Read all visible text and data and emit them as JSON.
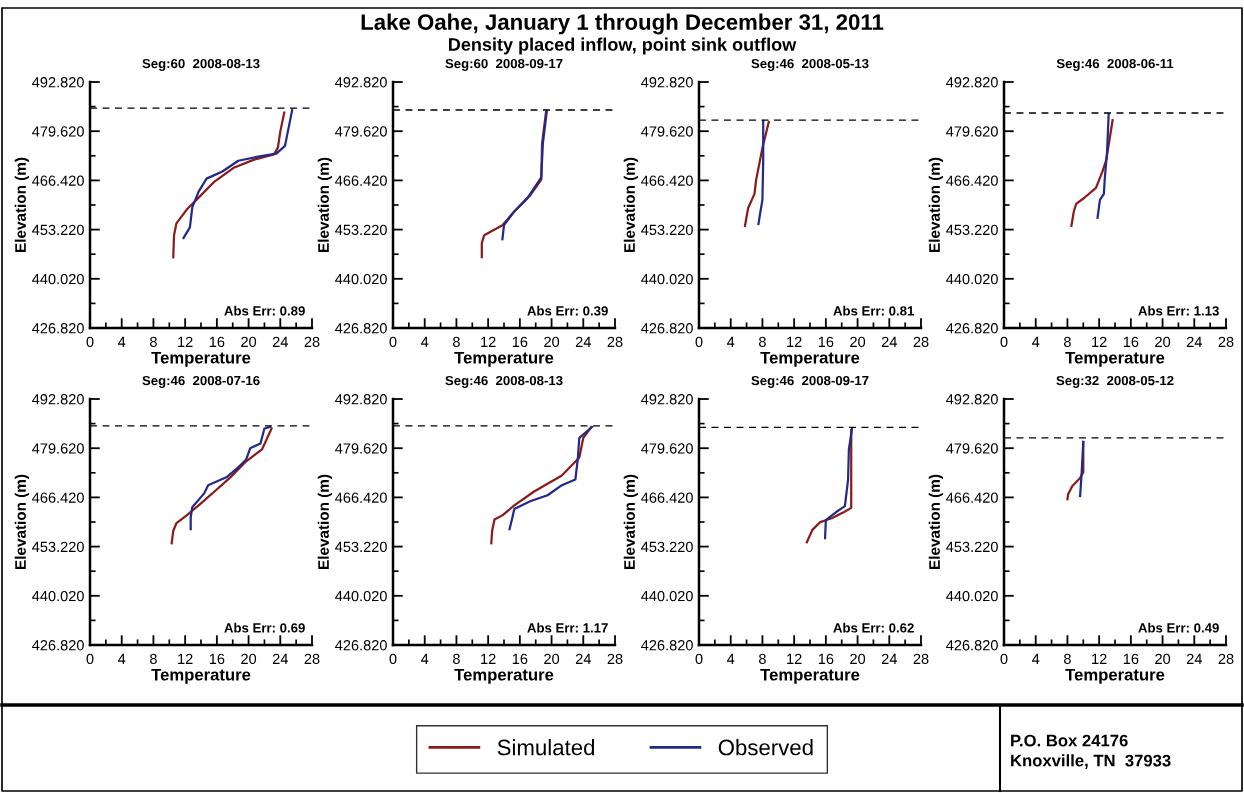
{
  "chart_data": [
    {
      "type": "line",
      "title": "Seg:60  2008-08-13",
      "xlabel": "Temperature",
      "ylabel": "Elevation (m)",
      "xlim": [
        0,
        28
      ],
      "xticks": [
        0,
        4,
        8,
        12,
        16,
        20,
        24,
        28
      ],
      "ylim": [
        426.82,
        492.82
      ],
      "yticks": [
        {
          "value": 426.82,
          "label": "426.820"
        },
        {
          "value": 440.02,
          "label": "440.020"
        },
        {
          "value": 453.22,
          "label": "453.220"
        },
        {
          "value": 466.42,
          "label": "466.420"
        },
        {
          "value": 479.62,
          "label": "479.620"
        },
        {
          "value": 492.82,
          "label": "492.820"
        }
      ],
      "grid": false,
      "legend": "bottom",
      "annotations": [
        "Abs Err: 0.89"
      ],
      "ref_lines": [
        {
          "axis": "y",
          "value": 485.8,
          "color": "#000000",
          "line_style": "dashed"
        }
      ],
      "series": [
        {
          "name": "Simulated",
          "color": "#8b1a1a",
          "x": [
            24.5,
            24.0,
            23.7,
            23.2,
            20.7,
            18.2,
            15.7,
            13.7,
            12.2,
            10.9,
            10.6,
            10.5
          ],
          "values": [
            484.6,
            479.5,
            475.2,
            473.4,
            472.0,
            469.9,
            466.1,
            461.8,
            458.6,
            454.9,
            451.7,
            445.8
          ]
        },
        {
          "name": "Observed",
          "color": "#1f2a8c",
          "x": [
            25.5,
            24.8,
            24.6,
            23.5,
            21.2,
            18.7,
            16.7,
            14.7,
            13.7,
            12.9,
            12.6,
            11.8
          ],
          "values": [
            485.3,
            477.9,
            475.7,
            473.6,
            472.8,
            471.7,
            468.8,
            466.9,
            463.4,
            459.2,
            453.8,
            451.0
          ]
        }
      ]
    },
    {
      "type": "line",
      "title": "Seg:60  2008-09-17",
      "xlabel": "Temperature",
      "ylabel": "Elevation (m)",
      "xlim": [
        0,
        28
      ],
      "xticks": [
        0,
        4,
        8,
        12,
        16,
        20,
        24,
        28
      ],
      "ylim": [
        426.82,
        492.82
      ],
      "yticks": [
        {
          "value": 426.82,
          "label": "426.820"
        },
        {
          "value": 440.02,
          "label": "440.020"
        },
        {
          "value": 453.22,
          "label": "453.220"
        },
        {
          "value": 466.42,
          "label": "466.420"
        },
        {
          "value": 479.62,
          "label": "479.620"
        },
        {
          "value": 492.82,
          "label": "492.820"
        }
      ],
      "grid": false,
      "annotations": [
        "Abs Err: 0.39"
      ],
      "ref_lines": [
        {
          "axis": "y",
          "value": 485.3,
          "color": "#000000",
          "line_style": "dashed"
        }
      ],
      "series": [
        {
          "color": "#8b1a1a",
          "x": [
            19.3,
            18.8,
            18.7,
            17.3,
            15.3,
            13.8,
            11.5,
            11.2,
            11.2
          ],
          "values": [
            484.8,
            476.3,
            466.6,
            462.4,
            458.1,
            454.4,
            451.7,
            449.6,
            445.8
          ]
        },
        {
          "color": "#1f2a8c",
          "x": [
            19.4,
            18.9,
            18.7,
            17.0,
            15.3,
            14.0,
            13.8
          ],
          "values": [
            485.0,
            476.3,
            467.2,
            461.8,
            458.1,
            454.4,
            450.6
          ]
        }
      ]
    },
    {
      "type": "line",
      "title": "Seg:46  2008-05-13",
      "xlabel": "Temperature",
      "ylabel": "Elevation (m)",
      "xlim": [
        0,
        28
      ],
      "xticks": [
        0,
        4,
        8,
        12,
        16,
        20,
        24,
        28
      ],
      "ylim": [
        426.82,
        492.82
      ],
      "yticks": [
        {
          "value": 426.82,
          "label": "426.820"
        },
        {
          "value": 440.02,
          "label": "440.020"
        },
        {
          "value": 453.22,
          "label": "453.220"
        },
        {
          "value": 466.42,
          "label": "466.420"
        },
        {
          "value": 479.62,
          "label": "479.620"
        },
        {
          "value": 492.82,
          "label": "492.820"
        }
      ],
      "grid": false,
      "annotations": [
        "Abs Err: 0.81"
      ],
      "ref_lines": [
        {
          "axis": "y",
          "value": 482.6,
          "color": "#000000",
          "line_style": "dashed"
        }
      ],
      "series": [
        {
          "color": "#8b1a1a",
          "x": [
            8.8,
            8.0,
            7.2,
            7.0,
            6.2,
            5.8
          ],
          "values": [
            482.1,
            475.1,
            466.5,
            462.8,
            459.0,
            454.2
          ]
        },
        {
          "color": "#1f2a8c",
          "x": [
            8.1,
            8.1,
            8.0,
            7.7,
            7.5
          ],
          "values": [
            482.4,
            471.9,
            461.2,
            457.4,
            454.7
          ]
        }
      ]
    },
    {
      "type": "line",
      "title": "Seg:46  2008-06-11",
      "xlabel": "Temperature",
      "ylabel": "Elevation (m)",
      "xlim": [
        0,
        28
      ],
      "xticks": [
        0,
        4,
        8,
        12,
        16,
        20,
        24,
        28
      ],
      "ylim": [
        426.82,
        492.82
      ],
      "yticks": [
        {
          "value": 426.82,
          "label": "426.820"
        },
        {
          "value": 440.02,
          "label": "440.020"
        },
        {
          "value": 453.22,
          "label": "453.220"
        },
        {
          "value": 466.42,
          "label": "466.420"
        },
        {
          "value": 479.62,
          "label": "479.620"
        },
        {
          "value": 492.82,
          "label": "492.820"
        }
      ],
      "grid": false,
      "annotations": [
        "Abs Err: 1.13"
      ],
      "ref_lines": [
        {
          "axis": "y",
          "value": 484.5,
          "color": "#000000",
          "line_style": "dashed"
        }
      ],
      "series": [
        {
          "color": "#8b1a1a",
          "x": [
            13.7,
            12.9,
            12.4,
            11.6,
            10.1,
            9.1,
            8.8,
            8.5
          ],
          "values": [
            482.6,
            471.9,
            468.7,
            464.4,
            461.7,
            460.1,
            458.0,
            454.2
          ]
        },
        {
          "color": "#1f2a8c",
          "x": [
            13.2,
            13.0,
            12.7,
            12.6,
            12.1,
            11.8
          ],
          "values": [
            484.2,
            474.1,
            466.6,
            462.8,
            461.2,
            456.4
          ]
        }
      ]
    },
    {
      "type": "line",
      "title": "Seg:46  2008-07-16",
      "xlabel": "Temperature",
      "ylabel": "Elevation (m)",
      "xlim": [
        0,
        28
      ],
      "xticks": [
        0,
        4,
        8,
        12,
        16,
        20,
        24,
        28
      ],
      "ylim": [
        426.82,
        492.82
      ],
      "yticks": [
        {
          "value": 426.82,
          "label": "426.820"
        },
        {
          "value": 440.02,
          "label": "440.020"
        },
        {
          "value": 453.22,
          "label": "453.220"
        },
        {
          "value": 466.42,
          "label": "466.420"
        },
        {
          "value": 479.62,
          "label": "479.620"
        },
        {
          "value": 492.82,
          "label": "492.820"
        }
      ],
      "grid": false,
      "annotations": [
        "Abs Err: 0.69"
      ],
      "ref_lines": [
        {
          "axis": "y",
          "value": 485.6,
          "color": "#000000",
          "line_style": "dashed"
        }
      ],
      "series": [
        {
          "color": "#8b1a1a",
          "x": [
            22.9,
            21.7,
            19.7,
            17.7,
            15.7,
            13.7,
            12.2,
            10.9,
            10.5,
            10.3
          ],
          "values": [
            484.9,
            479.3,
            476.1,
            471.8,
            468.0,
            464.3,
            461.6,
            459.5,
            457.4,
            454.1
          ]
        },
        {
          "color": "#1f2a8c",
          "x": [
            22.7,
            22.0,
            21.5,
            20.2,
            19.7,
            18.7,
            17.2,
            14.9,
            14.4,
            12.9,
            12.7,
            12.7
          ],
          "values": [
            485.3,
            484.9,
            480.9,
            479.6,
            476.6,
            474.5,
            471.8,
            469.7,
            467.5,
            463.8,
            461.1,
            457.9
          ]
        }
      ]
    },
    {
      "type": "line",
      "title": "Seg:46  2008-08-13",
      "xlabel": "Temperature",
      "ylabel": "Elevation (m)",
      "xlim": [
        0,
        28
      ],
      "xticks": [
        0,
        4,
        8,
        12,
        16,
        20,
        24,
        28
      ],
      "ylim": [
        426.82,
        492.82
      ],
      "yticks": [
        {
          "value": 426.82,
          "label": "426.820"
        },
        {
          "value": 440.02,
          "label": "440.020"
        },
        {
          "value": 453.22,
          "label": "453.220"
        },
        {
          "value": 466.42,
          "label": "466.420"
        },
        {
          "value": 479.62,
          "label": "479.620"
        },
        {
          "value": 492.82,
          "label": "492.820"
        }
      ],
      "grid": false,
      "annotations": [
        "Abs Err: 1.17"
      ],
      "ref_lines": [
        {
          "axis": "y",
          "value": 485.6,
          "color": "#000000",
          "line_style": "dashed"
        }
      ],
      "series": [
        {
          "color": "#8b1a1a",
          "x": [
            25.0,
            24.0,
            23.5,
            21.3,
            17.8,
            15.3,
            13.8,
            12.8,
            12.5,
            12.4
          ],
          "values": [
            485.3,
            482.4,
            477.1,
            472.3,
            468.0,
            464.3,
            461.6,
            460.5,
            457.4,
            454.1
          ]
        },
        {
          "color": "#1f2a8c",
          "x": [
            25.1,
            23.5,
            23.3,
            23.0,
            21.3,
            19.5,
            17.3,
            15.3,
            15.0,
            14.7
          ],
          "values": [
            485.3,
            482.4,
            476.6,
            471.2,
            469.7,
            467.0,
            465.4,
            463.3,
            460.5,
            457.9
          ]
        }
      ]
    },
    {
      "type": "line",
      "title": "Seg:46  2008-09-17",
      "xlabel": "Temperature",
      "ylabel": "Elevation (m)",
      "xlim": [
        0,
        28
      ],
      "xticks": [
        0,
        4,
        8,
        12,
        16,
        20,
        24,
        28
      ],
      "ylim": [
        426.82,
        492.82
      ],
      "yticks": [
        {
          "value": 426.82,
          "label": "426.820"
        },
        {
          "value": 440.02,
          "label": "440.020"
        },
        {
          "value": 453.22,
          "label": "453.220"
        },
        {
          "value": 466.42,
          "label": "466.420"
        },
        {
          "value": 479.62,
          "label": "479.620"
        },
        {
          "value": 492.82,
          "label": "492.820"
        }
      ],
      "grid": false,
      "annotations": [
        "Abs Err: 0.62"
      ],
      "ref_lines": [
        {
          "axis": "y",
          "value": 485.2,
          "color": "#000000",
          "line_style": "dashed"
        }
      ],
      "series": [
        {
          "color": "#8b1a1a",
          "x": [
            19.2,
            19.2,
            18.3,
            16.8,
            15.3,
            14.3,
            13.6
          ],
          "values": [
            484.5,
            463.6,
            462.5,
            460.9,
            459.8,
            457.7,
            454.4
          ]
        },
        {
          "color": "#1f2a8c",
          "x": [
            19.3,
            18.9,
            18.8,
            18.4,
            17.3,
            16.0,
            15.9
          ],
          "values": [
            484.9,
            479.2,
            471.1,
            464.1,
            462.5,
            460.3,
            455.5
          ]
        }
      ]
    },
    {
      "type": "line",
      "title": "Seg:32  2008-05-12",
      "xlabel": "Temperature",
      "ylabel": "Elevation (m)",
      "xlim": [
        0,
        28
      ],
      "xticks": [
        0,
        4,
        8,
        12,
        16,
        20,
        24,
        28
      ],
      "ylim": [
        426.82,
        492.82
      ],
      "yticks": [
        {
          "value": 426.82,
          "label": "426.820"
        },
        {
          "value": 440.02,
          "label": "440.020"
        },
        {
          "value": 453.22,
          "label": "453.220"
        },
        {
          "value": 466.42,
          "label": "466.420"
        },
        {
          "value": 479.62,
          "label": "479.620"
        },
        {
          "value": 492.82,
          "label": "492.820"
        }
      ],
      "grid": false,
      "annotations": [
        "Abs Err: 0.49"
      ],
      "ref_lines": [
        {
          "axis": "y",
          "value": 482.4,
          "color": "#000000",
          "line_style": "dashed"
        }
      ],
      "series": [
        {
          "color": "#8b1a1a",
          "x": [
            10.0,
            10.0,
            9.6,
            8.6,
            8.1,
            8.0
          ],
          "values": [
            481.3,
            473.2,
            471.6,
            469.4,
            467.3,
            465.9
          ]
        },
        {
          "color": "#1f2a8c",
          "x": [
            10.0,
            9.8,
            9.6
          ],
          "values": [
            481.3,
            473.2,
            466.8
          ]
        }
      ]
    },
    {
      "type": "other",
      "title": "Lake Oahe, January 1 through December 31, 2011",
      "subtitle": "Density placed inflow, point sink outflow",
      "annotations": [
        "P.O. Box 24176",
        "Knoxville, TN  37933"
      ]
    }
  ]
}
